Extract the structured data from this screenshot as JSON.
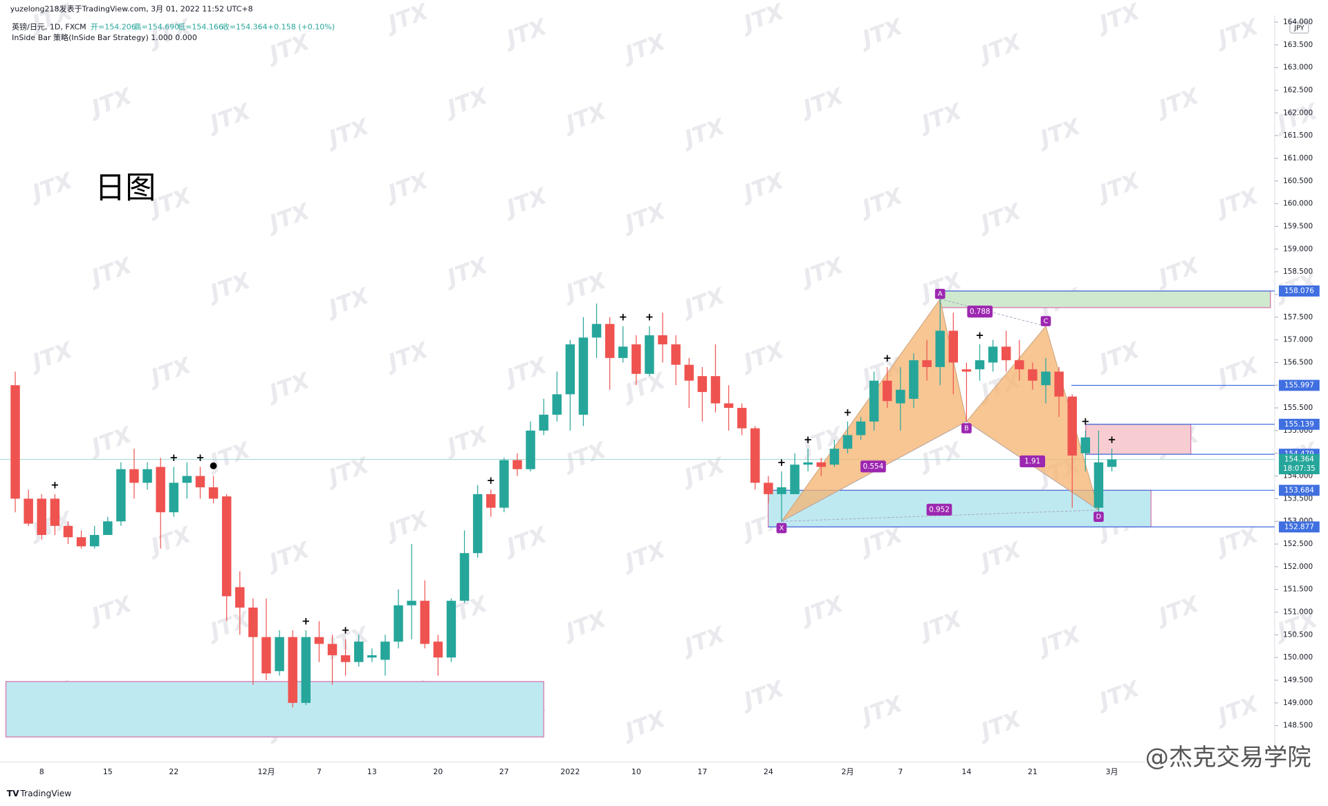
{
  "header": {
    "byline": "yuzelong218发表于TradingView.com, 3月 01, 2022 11:52 UTC+8",
    "symbol": "英镑/日元, 1D, FXCM",
    "ohlc": [
      "开=154.206",
      "高=154.690",
      "低=154.166",
      "收=154.364",
      "+0.158 (+0.10%)"
    ],
    "indicator": "InSide Bar 策略(InSide Bar Strategy)  1.000  0.000"
  },
  "annotation": "日图",
  "currency": "JPY",
  "brand": "TradingView",
  "credit": "@杰克交易学院",
  "watermark": "JTX",
  "chart_data": {
    "type": "candlestick",
    "up_color": "#26a69a",
    "down_color": "#ef5350",
    "categories": [
      null,
      null,
      "8",
      null,
      null,
      null,
      null,
      "15",
      null,
      null,
      null,
      null,
      "22",
      null,
      null,
      null,
      null,
      null,
      null,
      "12月",
      null,
      null,
      null,
      "7",
      null,
      null,
      null,
      "13",
      null,
      null,
      null,
      null,
      "20",
      null,
      null,
      null,
      null,
      "27",
      null,
      null,
      null,
      null,
      "2022",
      null,
      null,
      null,
      null,
      "10",
      null,
      null,
      null,
      null,
      "17",
      null,
      null,
      null,
      null,
      "24",
      null,
      null,
      null,
      null,
      null,
      "2月",
      null,
      null,
      null,
      "7",
      null,
      null,
      null,
      null,
      "14",
      null,
      null,
      null,
      null,
      "21",
      null,
      null,
      null,
      null,
      null,
      "3月"
    ],
    "open": [
      156.0,
      153.5,
      153.5,
      153.5,
      152.9,
      152.65,
      152.45,
      152.7,
      153.0,
      154.15,
      153.85,
      154.2,
      153.2,
      153.85,
      154.0,
      153.75,
      153.55,
      151.55,
      151.1,
      150.45,
      149.7,
      150.45,
      149.0,
      150.45,
      150.3,
      150.05,
      149.9,
      150.0,
      149.95,
      150.35,
      151.15,
      151.25,
      150.35,
      150.0,
      151.25,
      152.3,
      153.6,
      153.3,
      154.35,
      154.15,
      155.0,
      155.35,
      155.8,
      155.35,
      157.05,
      157.35,
      156.6,
      156.9,
      156.25,
      157.1,
      156.9,
      156.45,
      156.2,
      156.2,
      155.6,
      155.5,
      155.05,
      153.85,
      153.6,
      153.6,
      154.25,
      154.3,
      154.25,
      154.6,
      154.9,
      155.2,
      156.1,
      155.6,
      155.7,
      156.55,
      156.4,
      157.2,
      156.35,
      156.35,
      156.5,
      156.85,
      156.55,
      156.35,
      156.0,
      156.3,
      155.75,
      154.5,
      153.3,
      154.2
    ],
    "high": [
      156.3,
      153.7,
      153.6,
      153.6,
      153.0,
      152.8,
      152.9,
      153.1,
      154.3,
      154.6,
      154.3,
      154.4,
      154.2,
      154.3,
      154.2,
      154.0,
      153.6,
      151.9,
      151.3,
      151.3,
      150.6,
      150.6,
      150.6,
      150.8,
      150.5,
      150.4,
      150.5,
      150.2,
      150.5,
      151.5,
      152.5,
      151.7,
      150.5,
      151.3,
      152.8,
      153.8,
      153.7,
      154.4,
      154.5,
      155.2,
      155.7,
      156.3,
      157.0,
      157.5,
      157.8,
      157.5,
      157.3,
      157.1,
      157.3,
      157.6,
      157.1,
      156.6,
      156.4,
      156.9,
      156.0,
      155.6,
      155.1,
      154.0,
      154.1,
      154.5,
      154.6,
      154.4,
      154.8,
      155.2,
      155.3,
      156.3,
      156.4,
      156.4,
      156.7,
      157.0,
      158.0,
      157.6,
      156.5,
      156.9,
      157.0,
      157.2,
      157.0,
      156.5,
      156.6,
      156.4,
      155.8,
      155.0,
      155.0,
      154.6
    ],
    "low": [
      153.2,
      152.9,
      152.6,
      152.7,
      152.5,
      152.4,
      152.4,
      152.7,
      152.9,
      153.5,
      153.7,
      152.4,
      153.1,
      153.5,
      153.5,
      153.4,
      150.8,
      150.5,
      149.4,
      149.5,
      149.6,
      148.9,
      148.95,
      149.9,
      149.4,
      149.6,
      149.8,
      149.9,
      149.6,
      150.2,
      150.4,
      150.2,
      149.6,
      149.9,
      151.2,
      152.2,
      153.1,
      153.2,
      154.0,
      154.1,
      154.9,
      155.2,
      155.0,
      155.1,
      156.6,
      155.9,
      156.5,
      156.0,
      156.2,
      156.5,
      156.0,
      155.5,
      155.2,
      155.4,
      155.0,
      154.9,
      153.7,
      153.4,
      153.0,
      153.6,
      154.1,
      154.0,
      154.2,
      154.5,
      154.8,
      155.0,
      155.5,
      155.0,
      155.5,
      156.1,
      156.0,
      155.8,
      155.2,
      156.1,
      156.3,
      156.3,
      156.1,
      155.9,
      155.6,
      155.3,
      153.3,
      154.1,
      153.0,
      154.1
    ],
    "close": [
      153.5,
      152.95,
      152.7,
      152.9,
      152.65,
      152.45,
      152.7,
      153.0,
      154.15,
      153.85,
      154.15,
      153.2,
      153.85,
      154.0,
      153.75,
      153.5,
      151.35,
      151.1,
      150.45,
      149.65,
      150.45,
      149.0,
      150.45,
      150.3,
      150.05,
      149.9,
      150.35,
      150.05,
      150.35,
      151.15,
      151.25,
      150.3,
      150.0,
      151.25,
      152.3,
      153.6,
      153.3,
      154.35,
      154.15,
      155.0,
      155.35,
      155.8,
      156.9,
      157.05,
      157.35,
      156.6,
      156.85,
      156.25,
      157.1,
      156.9,
      156.45,
      156.1,
      155.85,
      155.6,
      155.5,
      155.05,
      153.85,
      153.6,
      153.75,
      154.25,
      154.3,
      154.2,
      154.6,
      154.9,
      155.2,
      156.1,
      155.65,
      155.9,
      156.55,
      156.4,
      157.2,
      156.5,
      156.3,
      156.55,
      156.85,
      156.55,
      156.35,
      156.1,
      156.3,
      155.75,
      154.45,
      154.85,
      154.3,
      154.364
    ],
    "ylim": [
      147.7,
      164.15
    ],
    "yticks": [
      {
        "value": 148.5,
        "label": "148.500"
      },
      {
        "value": 149,
        "label": "149.000"
      },
      {
        "value": 149.5,
        "label": "149.500"
      },
      {
        "value": 150,
        "label": "150.000"
      },
      {
        "value": 150.5,
        "label": "150.500"
      },
      {
        "value": 151,
        "label": "151.000"
      },
      {
        "value": 151.5,
        "label": "151.500"
      },
      {
        "value": 152,
        "label": "152.000"
      },
      {
        "value": 152.5,
        "label": "152.500"
      },
      {
        "value": 153,
        "label": "153.000"
      },
      {
        "value": 153.5,
        "label": "153.500"
      },
      {
        "value": 154,
        "label": "154.000"
      },
      {
        "value": 154.5,
        "label": "154.500"
      },
      {
        "value": 155,
        "label": "155.000"
      },
      {
        "value": 155.5,
        "label": "155.500"
      },
      {
        "value": 156,
        "label": "156.000"
      },
      {
        "value": 156.5,
        "label": "156.500"
      },
      {
        "value": 157,
        "label": "157.000"
      },
      {
        "value": 157.5,
        "label": "157.500"
      },
      {
        "value": 158,
        "label": "158.000"
      },
      {
        "value": 158.5,
        "label": "158.500"
      },
      {
        "value": 159,
        "label": "159.000"
      },
      {
        "value": 159.5,
        "label": "159.500"
      },
      {
        "value": 160,
        "label": "160.000"
      },
      {
        "value": 160.5,
        "label": "160.500"
      },
      {
        "value": 161,
        "label": "161.000"
      },
      {
        "value": 161.5,
        "label": "161.500"
      },
      {
        "value": 162,
        "label": "162.000"
      },
      {
        "value": 162.5,
        "label": "162.500"
      },
      {
        "value": 163,
        "label": "163.000"
      },
      {
        "value": 163.5,
        "label": "163.500"
      },
      {
        "value": 164,
        "label": "164.000"
      }
    ],
    "levels": [
      158.076,
      155.997,
      155.139,
      154.479,
      153.684,
      152.877
    ],
    "level_color": "#3f6fe0",
    "last_price": 154.364,
    "countdown": "18:07:35",
    "last_color": "#26a69a",
    "zones": [
      {
        "low": 157.71,
        "high": 158.076,
        "color": "#cfe9cf"
      },
      {
        "low": 154.479,
        "high": 155.139,
        "color": "#f8cdd1"
      },
      {
        "low": 152.877,
        "high": 153.684,
        "color": "#bfe9f1"
      },
      {
        "low": 148.25,
        "high": 149.47,
        "color": "#bfe9f1"
      }
    ],
    "pattern": {
      "points": [
        {
          "label": "X",
          "price": 153.0
        },
        {
          "label": "A",
          "price": 157.9
        },
        {
          "label": "B",
          "price": 155.2
        },
        {
          "label": "C",
          "price": 157.3
        },
        {
          "label": "D",
          "price": 153.25
        }
      ],
      "ratios": [
        0.788,
        0.554,
        1.91,
        0.952
      ],
      "color": "#9c27b0",
      "fill": "#f5b36f"
    }
  }
}
